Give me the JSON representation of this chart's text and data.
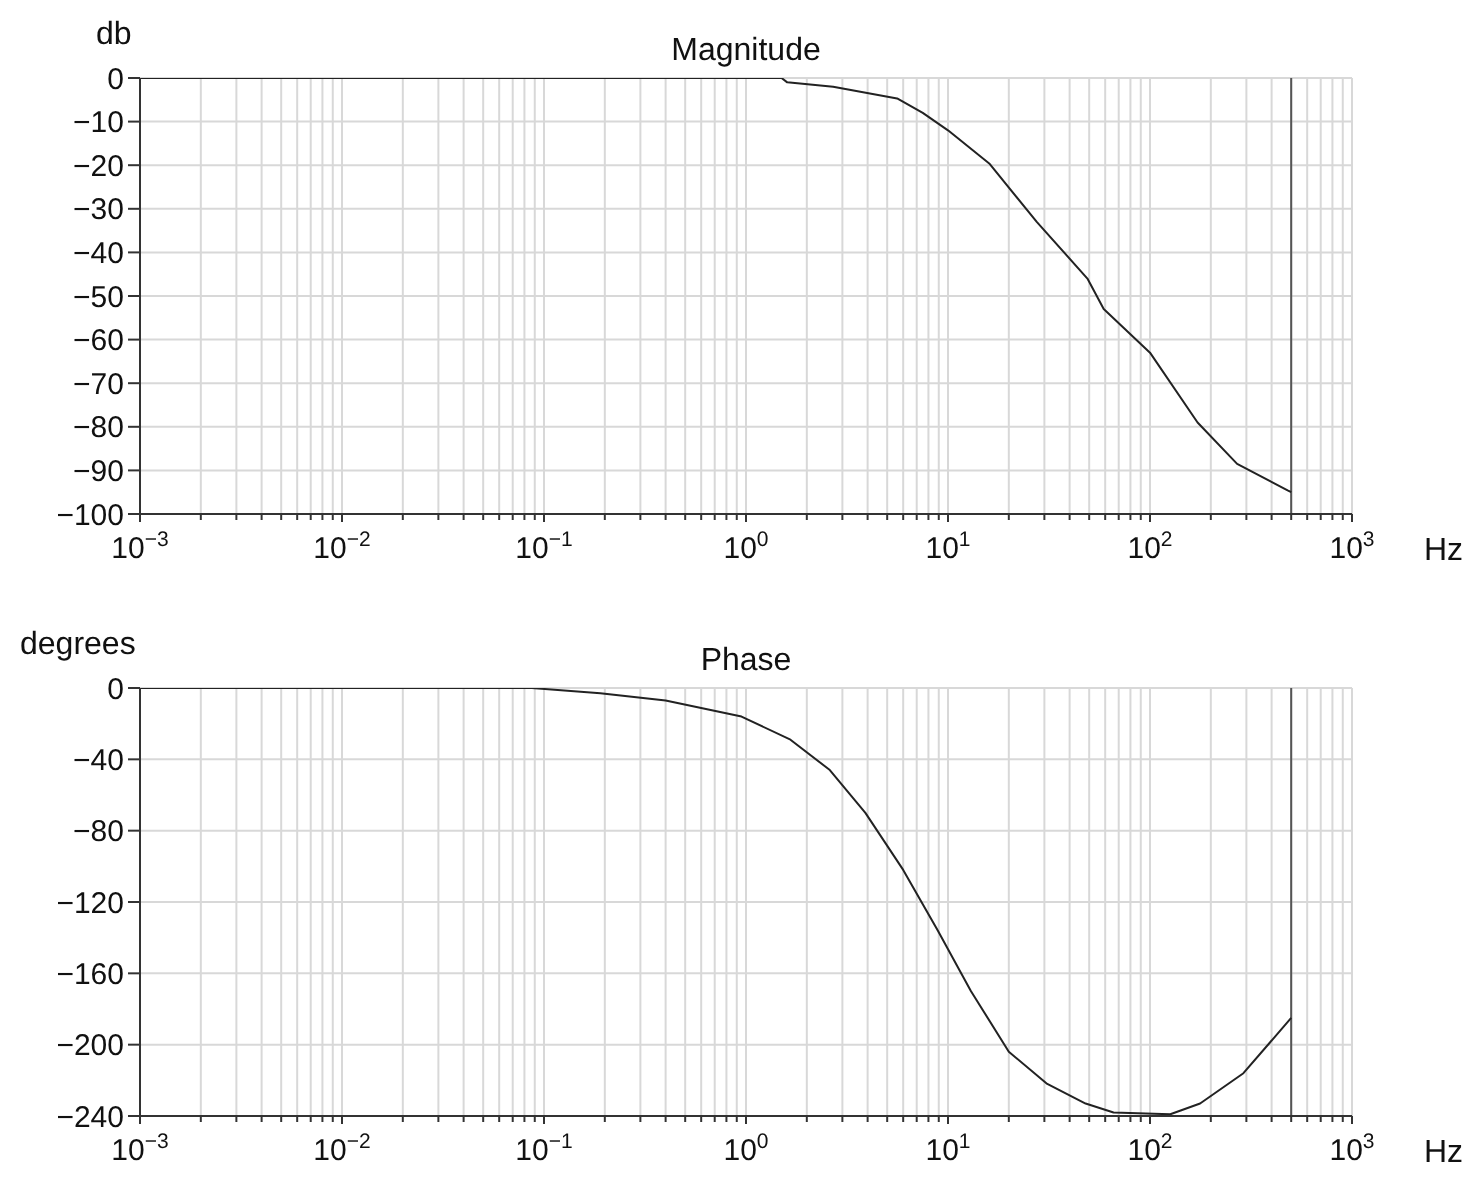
{
  "chart_data": [
    {
      "type": "line",
      "title": "Magnitude",
      "ylabel": "db",
      "xlabel": "Hz",
      "log": "x",
      "grid": true,
      "xlim": [
        0.001,
        1000
      ],
      "xticks": [
        {
          "value": 0.001,
          "label": "10$^{−3}$"
        },
        {
          "value": 0.002,
          "label": null
        },
        {
          "value": 0.003,
          "label": null
        },
        {
          "value": 0.004,
          "label": null
        },
        {
          "value": 0.005,
          "label": null
        },
        {
          "value": 0.006,
          "label": null
        },
        {
          "value": 0.007,
          "label": null
        },
        {
          "value": 0.008,
          "label": null
        },
        {
          "value": 0.009,
          "label": null
        },
        {
          "value": 0.01,
          "label": "10$^{−2}$"
        },
        {
          "value": 0.02,
          "label": null
        },
        {
          "value": 0.03,
          "label": null
        },
        {
          "value": 0.04,
          "label": null
        },
        {
          "value": 0.05,
          "label": null
        },
        {
          "value": 0.06,
          "label": null
        },
        {
          "value": 0.07,
          "label": null
        },
        {
          "value": 0.08,
          "label": null
        },
        {
          "value": 0.09,
          "label": null
        },
        {
          "value": 0.1,
          "label": "10$^{−1}$"
        },
        {
          "value": 0.2,
          "label": null
        },
        {
          "value": 0.3,
          "label": null
        },
        {
          "value": 0.4,
          "label": null
        },
        {
          "value": 0.5,
          "label": null
        },
        {
          "value": 0.6,
          "label": null
        },
        {
          "value": 0.7,
          "label": null
        },
        {
          "value": 0.8,
          "label": null
        },
        {
          "value": 0.9,
          "label": null
        },
        {
          "value": 1,
          "label": "10$^{0}$"
        },
        {
          "value": 2,
          "label": null
        },
        {
          "value": 3,
          "label": null
        },
        {
          "value": 4,
          "label": null
        },
        {
          "value": 5,
          "label": null
        },
        {
          "value": 6,
          "label": null
        },
        {
          "value": 7,
          "label": null
        },
        {
          "value": 8,
          "label": null
        },
        {
          "value": 9,
          "label": null
        },
        {
          "value": 10,
          "label": "10$^{1}$"
        },
        {
          "value": 20,
          "label": null
        },
        {
          "value": 30,
          "label": null
        },
        {
          "value": 40,
          "label": null
        },
        {
          "value": 50,
          "label": null
        },
        {
          "value": 60,
          "label": null
        },
        {
          "value": 70,
          "label": null
        },
        {
          "value": 80,
          "label": null
        },
        {
          "value": 90,
          "label": null
        },
        {
          "value": 100,
          "label": "10$^{2}$"
        },
        {
          "value": 200,
          "label": null
        },
        {
          "value": 300,
          "label": null
        },
        {
          "value": 400,
          "label": null
        },
        {
          "value": 500,
          "label": null
        },
        {
          "value": 600,
          "label": null
        },
        {
          "value": 700,
          "label": null
        },
        {
          "value": 800,
          "label": null
        },
        {
          "value": 900,
          "label": null
        },
        {
          "value": 1000,
          "label": "10$^{3}$"
        }
      ],
      "ylim": [
        -100,
        0
      ],
      "yticks": [
        -100,
        -90,
        -80,
        -70,
        -60,
        -50,
        -40,
        -30,
        -20,
        -10,
        0
      ],
      "x": [
        0.001,
        1.5,
        1.6,
        2.7,
        5.6,
        7.5,
        10,
        16,
        27.5,
        49,
        59,
        100,
        172,
        270,
        480,
        500
      ],
      "series": [
        {
          "color": "#222222",
          "values": [
            0,
            0,
            -1,
            -2,
            -4.7,
            -8,
            -12,
            -19.6,
            -33,
            -46,
            -53,
            -63,
            -79,
            -88.5,
            -94.6,
            -95
          ]
        }
      ],
      "ref_lines": [
        {
          "axis": "x",
          "value": 500,
          "label": null,
          "color": "#555555"
        }
      ]
    },
    {
      "type": "line",
      "title": "Phase",
      "ylabel": "degrees",
      "xlabel": "Hz",
      "log": "x",
      "grid": true,
      "xlim": [
        0.001,
        1000
      ],
      "xticks": [
        {
          "value": 0.001,
          "label": "10$^{−3}$"
        },
        {
          "value": 0.002,
          "label": null
        },
        {
          "value": 0.003,
          "label": null
        },
        {
          "value": 0.004,
          "label": null
        },
        {
          "value": 0.005,
          "label": null
        },
        {
          "value": 0.006,
          "label": null
        },
        {
          "value": 0.007,
          "label": null
        },
        {
          "value": 0.008,
          "label": null
        },
        {
          "value": 0.009,
          "label": null
        },
        {
          "value": 0.01,
          "label": "10$^{−2}$"
        },
        {
          "value": 0.02,
          "label": null
        },
        {
          "value": 0.03,
          "label": null
        },
        {
          "value": 0.04,
          "label": null
        },
        {
          "value": 0.05,
          "label": null
        },
        {
          "value": 0.06,
          "label": null
        },
        {
          "value": 0.07,
          "label": null
        },
        {
          "value": 0.08,
          "label": null
        },
        {
          "value": 0.09,
          "label": null
        },
        {
          "value": 0.1,
          "label": "10$^{−1}$"
        },
        {
          "value": 0.2,
          "label": null
        },
        {
          "value": 0.3,
          "label": null
        },
        {
          "value": 0.4,
          "label": null
        },
        {
          "value": 0.5,
          "label": null
        },
        {
          "value": 0.6,
          "label": null
        },
        {
          "value": 0.7,
          "label": null
        },
        {
          "value": 0.8,
          "label": null
        },
        {
          "value": 0.9,
          "label": null
        },
        {
          "value": 1,
          "label": "10$^{0}$"
        },
        {
          "value": 2,
          "label": null
        },
        {
          "value": 3,
          "label": null
        },
        {
          "value": 4,
          "label": null
        },
        {
          "value": 5,
          "label": null
        },
        {
          "value": 6,
          "label": null
        },
        {
          "value": 7,
          "label": null
        },
        {
          "value": 8,
          "label": null
        },
        {
          "value": 9,
          "label": null
        },
        {
          "value": 10,
          "label": "10$^{1}$"
        },
        {
          "value": 20,
          "label": null
        },
        {
          "value": 30,
          "label": null
        },
        {
          "value": 40,
          "label": null
        },
        {
          "value": 50,
          "label": null
        },
        {
          "value": 60,
          "label": null
        },
        {
          "value": 70,
          "label": null
        },
        {
          "value": 80,
          "label": null
        },
        {
          "value": 90,
          "label": null
        },
        {
          "value": 100,
          "label": "10$^{2}$"
        },
        {
          "value": 200,
          "label": null
        },
        {
          "value": 300,
          "label": null
        },
        {
          "value": 400,
          "label": null
        },
        {
          "value": 500,
          "label": null
        },
        {
          "value": 600,
          "label": null
        },
        {
          "value": 700,
          "label": null
        },
        {
          "value": 800,
          "label": null
        },
        {
          "value": 900,
          "label": null
        },
        {
          "value": 1000,
          "label": "10$^{3}$"
        }
      ],
      "ylim": [
        -240,
        0
      ],
      "yticks": [
        -240,
        -200,
        -160,
        -120,
        -80,
        -40,
        0
      ],
      "x": [
        0.001,
        0.087,
        0.19,
        0.4,
        0.95,
        1.66,
        2.6,
        3.9,
        6,
        8.9,
        13,
        20,
        31,
        48,
        66,
        126,
        177,
        290,
        500
      ],
      "series": [
        {
          "color": "#222222",
          "values": [
            0,
            0,
            -3,
            -7,
            -16,
            -29,
            -46,
            -70,
            -102,
            -136,
            -170,
            -204,
            -222,
            -233,
            -238,
            -239,
            -233,
            -216,
            -185
          ]
        }
      ],
      "ref_lines": [
        {
          "axis": "x",
          "value": 500,
          "label": null,
          "color": "#555555"
        }
      ]
    }
  ]
}
